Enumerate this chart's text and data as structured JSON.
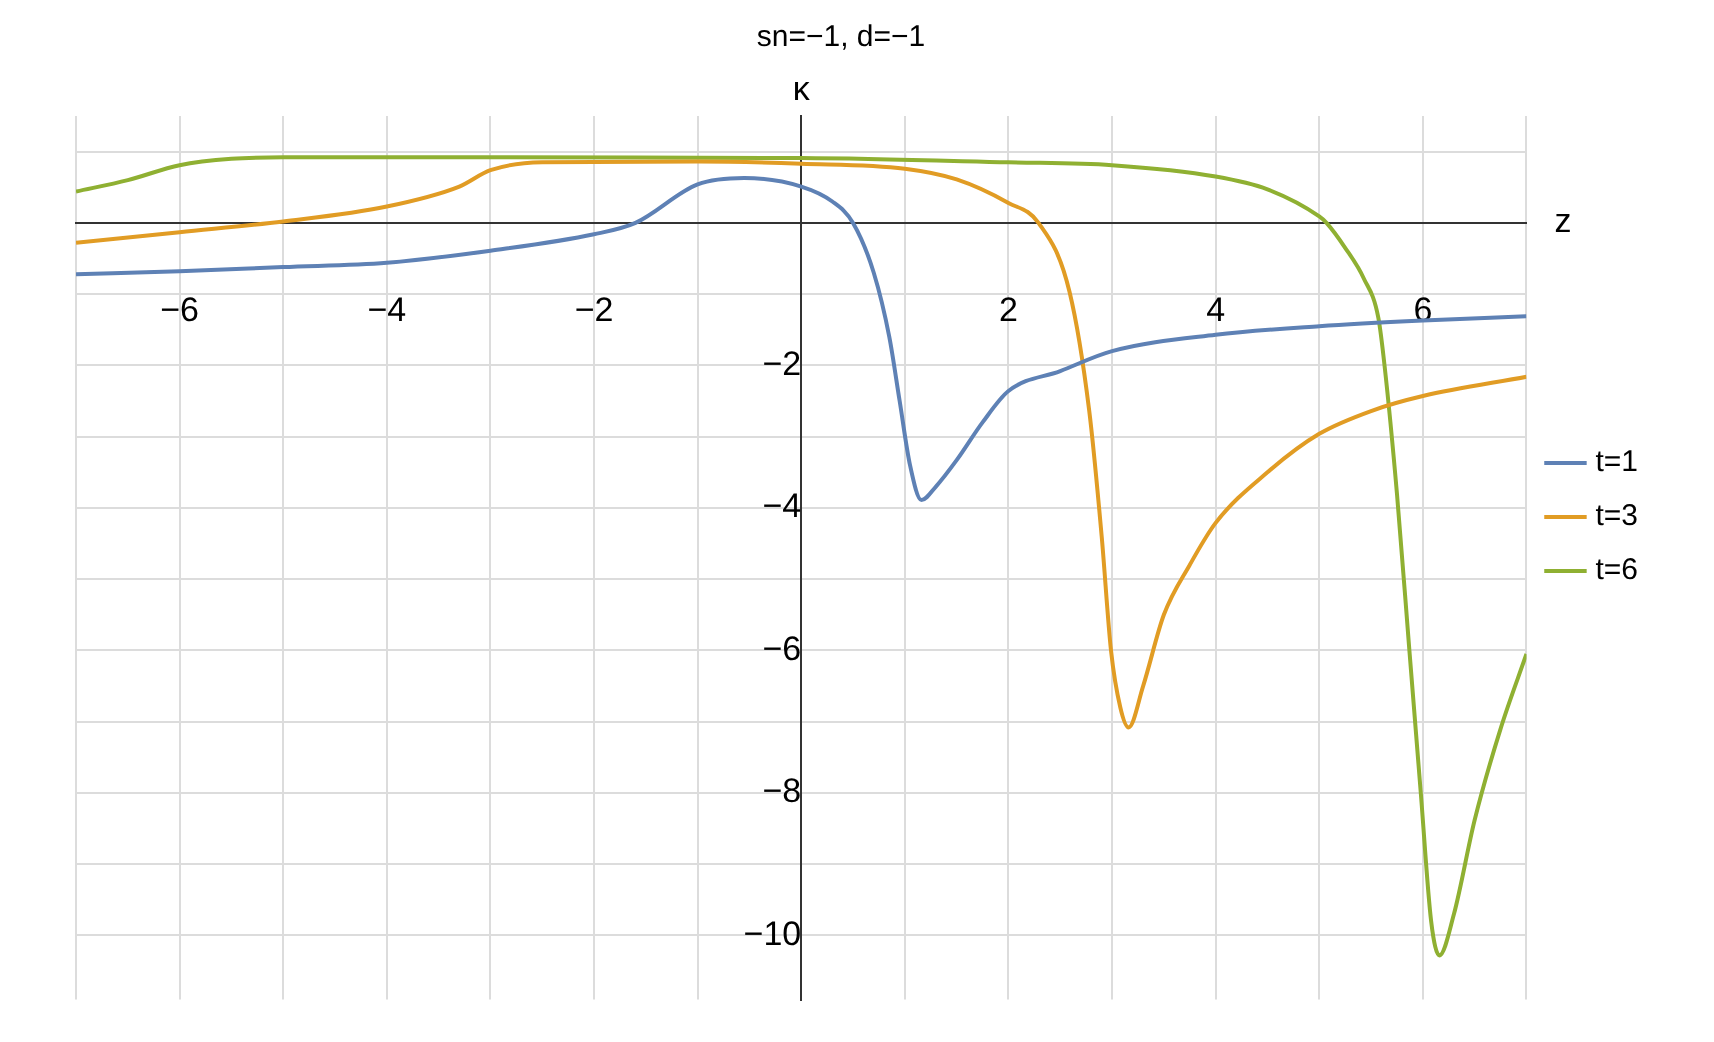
{
  "chart_data": {
    "type": "line",
    "title": "sn=−1, d=−1",
    "xlabel": "z",
    "ylabel": "κ",
    "xlim": [
      -7,
      7
    ],
    "ylim": [
      -10.9,
      1.5
    ],
    "xticks": [
      {
        "value": -7,
        "label": null
      },
      -6,
      {
        "value": -5,
        "label": null
      },
      -4,
      {
        "value": -3,
        "label": null
      },
      -2,
      {
        "value": -1,
        "label": null
      },
      {
        "value": 0,
        "label": null
      },
      {
        "value": 1,
        "label": null
      },
      2,
      {
        "value": 3,
        "label": null
      },
      4,
      {
        "value": 5,
        "label": null
      },
      6,
      {
        "value": 7,
        "label": null
      }
    ],
    "yticks": [
      -10,
      {
        "value": -9,
        "label": null
      },
      -8,
      {
        "value": -7,
        "label": null
      },
      -6,
      {
        "value": -5,
        "label": null
      },
      -4,
      {
        "value": -3,
        "label": null
      },
      -2,
      {
        "value": -1,
        "label": null
      },
      {
        "value": 0,
        "label": null
      },
      {
        "value": 1,
        "label": null
      }
    ],
    "grid": true,
    "legend": "right",
    "marker": "none",
    "line_style": "solid",
    "series": [
      {
        "name": "t=1",
        "color": "#5e81b5",
        "x": [
          -7,
          -6,
          -5,
          -4,
          -3,
          -2,
          -1.6,
          -1,
          -0.55,
          0,
          0.3,
          0.5,
          0.7,
          0.85,
          0.95,
          1.05,
          1.16,
          1.3,
          1.5,
          1.75,
          2,
          2.5,
          3,
          4,
          5,
          6,
          7
        ],
        "values": [
          -0.72,
          -0.68,
          -0.62,
          -0.56,
          -0.39,
          -0.16,
          0,
          0.54,
          0.63,
          0.51,
          0.3,
          0,
          -0.7,
          -1.6,
          -2.5,
          -3.4,
          -3.89,
          -3.7,
          -3.33,
          -2.8,
          -2.36,
          -2.08,
          -1.8,
          -1.57,
          -1.45,
          -1.37,
          -1.31
        ]
      },
      {
        "name": "t=3",
        "color": "#e19c24",
        "x": [
          -7,
          -6,
          -5,
          -4,
          -3.3,
          -3,
          -2.5,
          -1,
          0,
          1,
          1.5,
          2,
          2.29,
          2.59,
          2.78,
          2.9,
          2.99,
          3.08,
          3.16,
          3.3,
          3.5,
          3.75,
          4,
          4.5,
          5,
          5.5,
          6,
          7
        ],
        "values": [
          -0.28,
          -0.13,
          0.02,
          0.23,
          0.51,
          0.74,
          0.85,
          0.86,
          0.83,
          0.76,
          0.61,
          0.28,
          0,
          -0.97,
          -2.64,
          -4.4,
          -6,
          -6.8,
          -7.08,
          -6.5,
          -5.5,
          -4.8,
          -4.21,
          -3.5,
          -2.96,
          -2.64,
          -2.43,
          -2.16
        ]
      },
      {
        "name": "t=6",
        "color": "#8fb032",
        "x": [
          -7,
          -6.5,
          -6,
          -5.5,
          -5,
          -3,
          0,
          2,
          3,
          4,
          4.5,
          5,
          5.07,
          5.25,
          5.43,
          5.57,
          5.63,
          5.75,
          5.87,
          5.98,
          6.08,
          6.16,
          6.3,
          6.5,
          6.75,
          7
        ],
        "values": [
          0.44,
          0.6,
          0.81,
          0.9,
          0.92,
          0.92,
          0.91,
          0.85,
          0.81,
          0.65,
          0.47,
          0.09,
          0,
          -0.35,
          -0.78,
          -1.33,
          -2,
          -3.8,
          -6,
          -8,
          -9.8,
          -10.28,
          -9.7,
          -8.38,
          -7.1,
          -6.05
        ]
      }
    ]
  }
}
